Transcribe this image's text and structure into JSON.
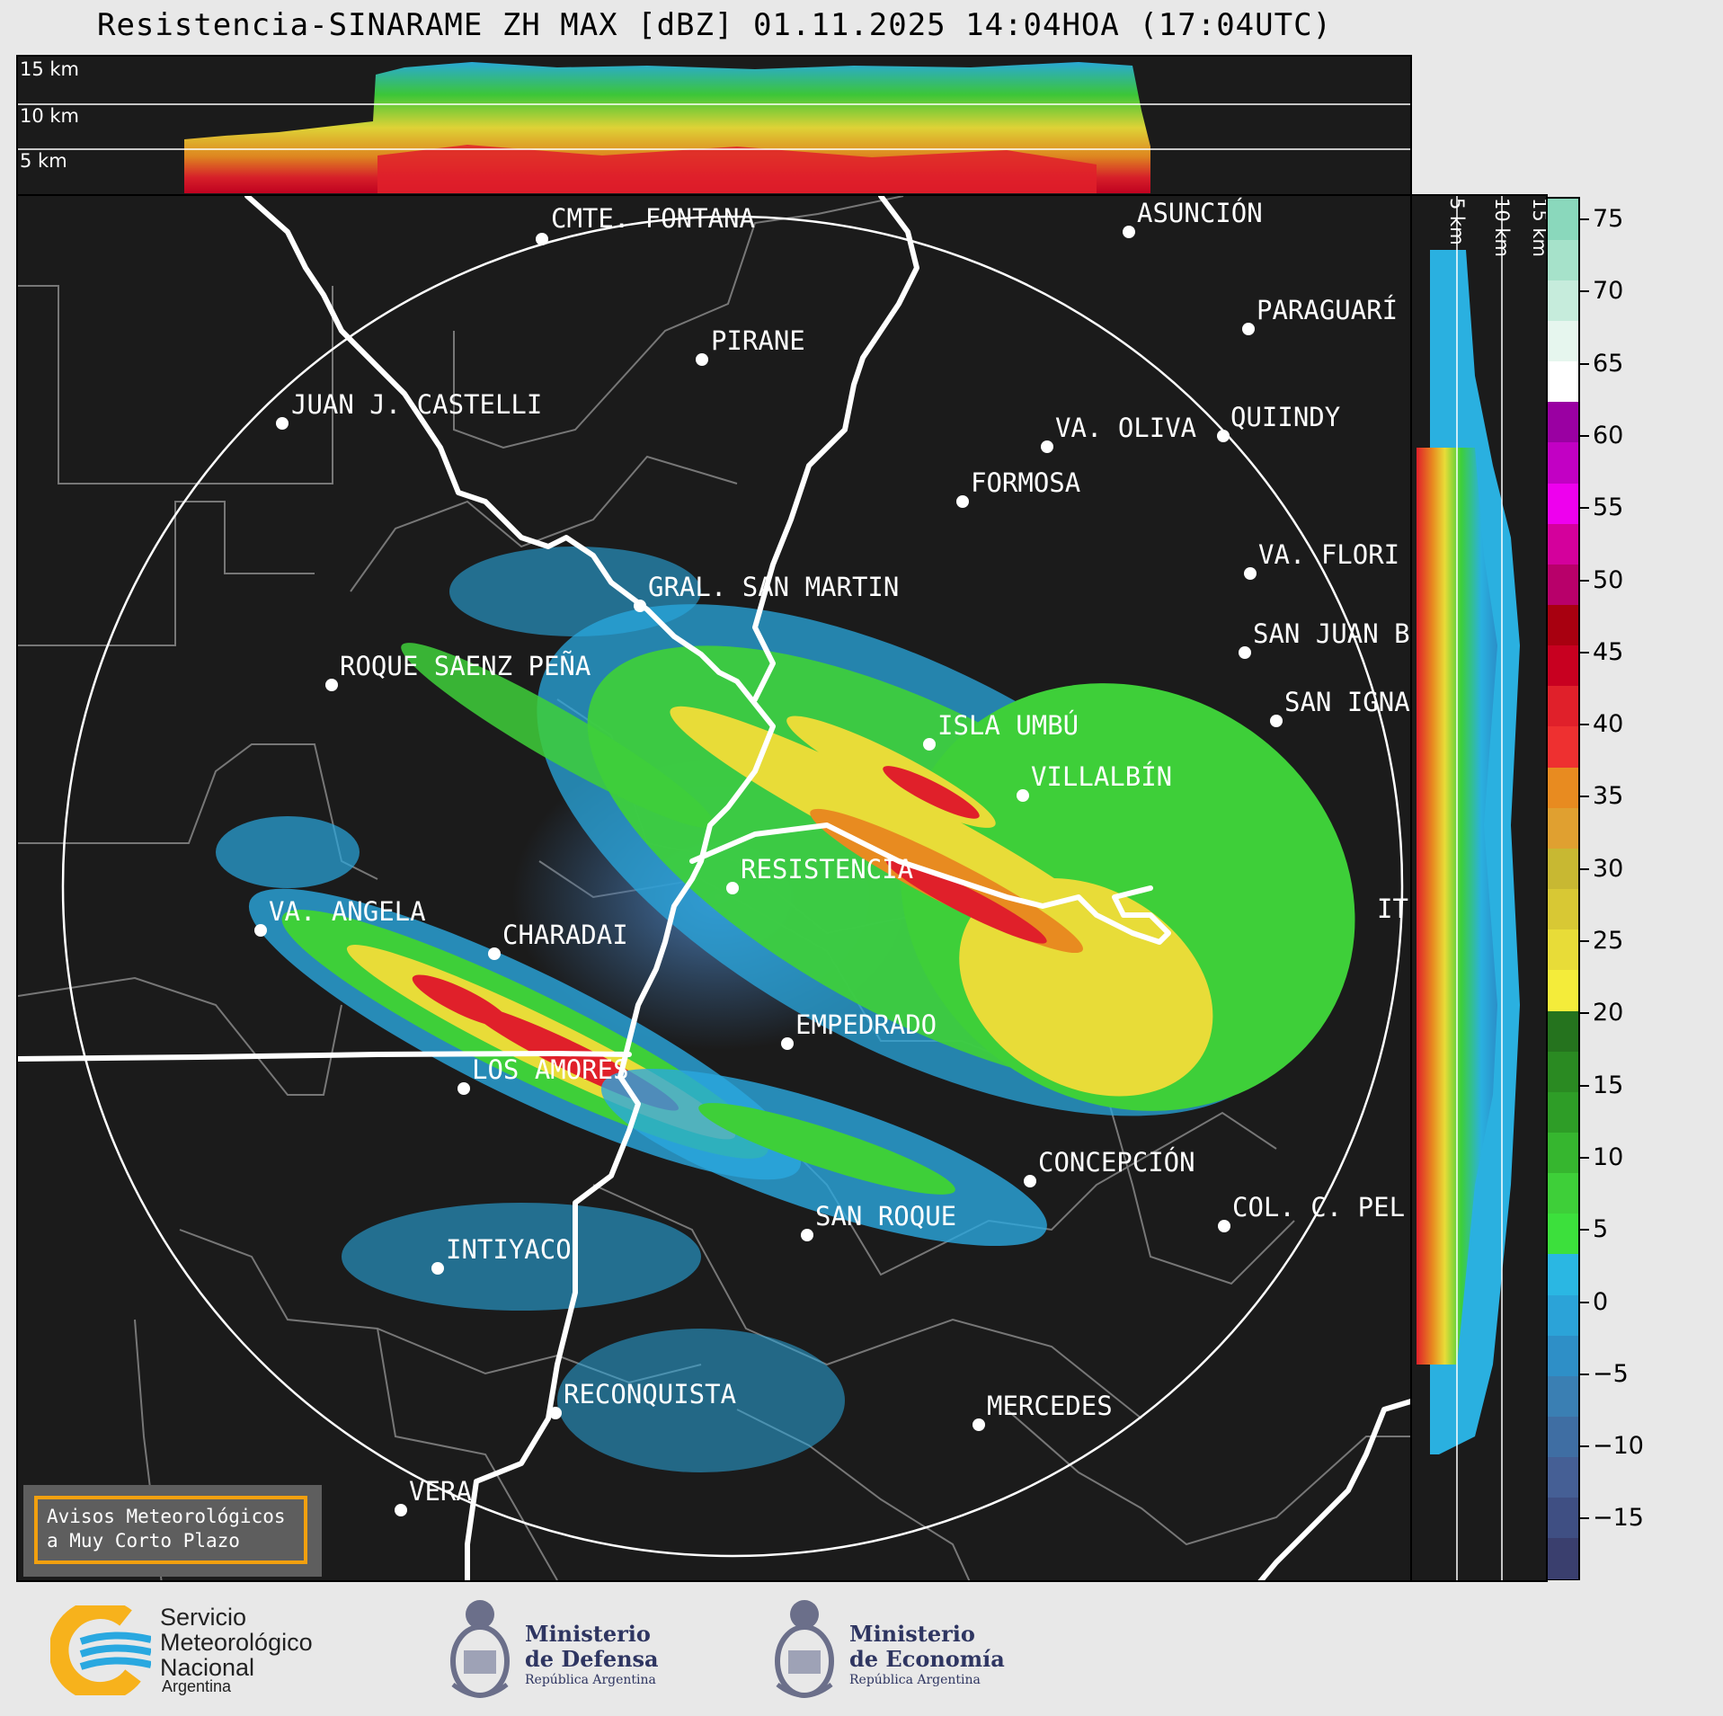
{
  "title": "Resistencia-SINARAME ZH MAX [dBZ] 01.11.2025 14:04HOA (17:04UTC)",
  "top_panel_altitudes": [
    "15 km",
    "10 km",
    "5 km"
  ],
  "side_panel_altitudes": [
    "5 km",
    "10 km",
    "15 km"
  ],
  "colorbar": {
    "ticks": [
      "75",
      "70",
      "65",
      "60",
      "55",
      "50",
      "45",
      "40",
      "35",
      "30",
      "25",
      "20",
      "15",
      "10",
      "5",
      "0",
      "−5",
      "−10",
      "−15"
    ],
    "colors": [
      "#3a3f6e",
      "#3f4f83",
      "#455f95",
      "#3f6ea3",
      "#3a7fb3",
      "#2e8fc7",
      "#2ba3d8",
      "#2ab7e3",
      "#3ce03c",
      "#3ecf39",
      "#36b62f",
      "#2e9d27",
      "#2a8a22",
      "#25731e",
      "#f4ec3a",
      "#e8dc38",
      "#d8c834",
      "#c8b832",
      "#e0a030",
      "#e88b20",
      "#ee3030",
      "#e0202a",
      "#c80020",
      "#a80010",
      "#b8006a",
      "#d4009c",
      "#ee00ee",
      "#c200c4",
      "#9a00a2",
      "#ffffff",
      "#e6f6ee",
      "#c6ecdc",
      "#a6e2ca",
      "#8ad8bc"
    ]
  },
  "cities": [
    {
      "name": "CMTE. FONTANA"
    },
    {
      "name": "ASUNCIÓN"
    },
    {
      "name": "PARAGUARÍ"
    },
    {
      "name": "PIRANE"
    },
    {
      "name": "JUAN J. CASTELLI"
    },
    {
      "name": "VA. OLIVA"
    },
    {
      "name": "QUIINDY"
    },
    {
      "name": "FORMOSA"
    },
    {
      "name": "VA. FLORI"
    },
    {
      "name": "GRAL. SAN MARTIN"
    },
    {
      "name": "SAN JUAN B"
    },
    {
      "name": "ROQUE SAENZ PEÑA"
    },
    {
      "name": "SAN IGNA"
    },
    {
      "name": "ISLA UMBÚ"
    },
    {
      "name": "VILLALBÍN"
    },
    {
      "name": "RESISTENCIA"
    },
    {
      "name": "VA. ANGELA"
    },
    {
      "name": "CHARADAI"
    },
    {
      "name": "IT"
    },
    {
      "name": "EMPEDRADO"
    },
    {
      "name": "LOS AMORES"
    },
    {
      "name": "CONCEPCIÓN"
    },
    {
      "name": "COL. C. PEL"
    },
    {
      "name": "SAN ROQUE"
    },
    {
      "name": "INTIYACO"
    },
    {
      "name": "RECONQUISTA"
    },
    {
      "name": "MERCEDES"
    },
    {
      "name": "VERA"
    }
  ],
  "warning": {
    "line1": "Avisos Meteorológicos",
    "line2": "a Muy Corto Plazo"
  },
  "logos": {
    "smn": {
      "line1": "Servicio",
      "line2": "Meteorológico",
      "line3": "Nacional",
      "line4": "Argentina"
    },
    "defensa": {
      "line1": "Ministerio",
      "line2": "de Defensa",
      "line3": "República Argentina"
    },
    "economia": {
      "line1": "Ministerio",
      "line2": "de Economía",
      "line3": "República Argentina"
    }
  }
}
